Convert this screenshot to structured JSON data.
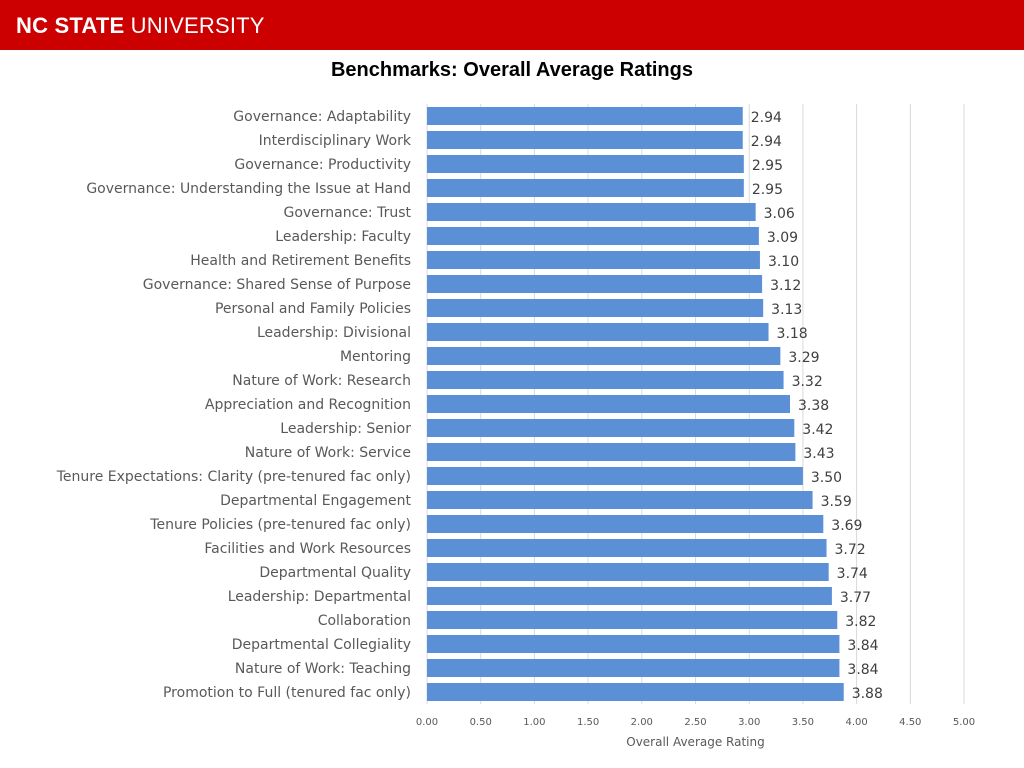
{
  "header": {
    "logo_bold": "NC STATE",
    "logo_regular": " UNIVERSITY",
    "color": "#cc0000"
  },
  "slide_title": "Benchmarks: Overall Average Ratings",
  "chart_data": {
    "type": "bar",
    "orientation": "horizontal",
    "title": "Benchmarks: Overall Average Ratings",
    "xlabel": "Overall Average Rating",
    "ylabel": "",
    "xlim": [
      0,
      5
    ],
    "x_ticks": [
      "0.00",
      "0.50",
      "1.00",
      "1.50",
      "2.00",
      "2.50",
      "3.00",
      "3.50",
      "4.00",
      "4.50",
      "5.00"
    ],
    "grid": "vertical",
    "bar_color": "#5b8fd6",
    "categories": [
      "Governance: Adaptability",
      "Interdisciplinary Work",
      "Governance: Productivity",
      "Governance: Understanding the Issue at Hand",
      "Governance: Trust",
      "Leadership: Faculty",
      "Health and Retirement Benefits",
      "Governance: Shared Sense of Purpose",
      "Personal and Family Policies",
      "Leadership: Divisional",
      "Mentoring",
      "Nature of Work: Research",
      "Appreciation and Recognition",
      "Leadership: Senior",
      "Nature of Work: Service",
      "Tenure Expectations: Clarity (pre-tenured fac only)",
      "Departmental Engagement",
      "Tenure Policies (pre-tenured fac only)",
      "Facilities and Work Resources",
      "Departmental Quality",
      "Leadership: Departmental",
      "Collaboration",
      "Departmental Collegiality",
      "Nature of Work: Teaching",
      "Promotion to Full (tenured fac only)"
    ],
    "values": [
      2.94,
      2.94,
      2.95,
      2.95,
      3.06,
      3.09,
      3.1,
      3.12,
      3.13,
      3.18,
      3.29,
      3.32,
      3.38,
      3.42,
      3.43,
      3.5,
      3.59,
      3.69,
      3.72,
      3.74,
      3.77,
      3.82,
      3.84,
      3.84,
      3.88
    ],
    "value_labels": [
      "2.94",
      "2.94",
      "2.95",
      "2.95",
      "3.06",
      "3.09",
      "3.10",
      "3.12",
      "3.13",
      "3.18",
      "3.29",
      "3.32",
      "3.38",
      "3.42",
      "3.43",
      "3.50",
      "3.59",
      "3.69",
      "3.72",
      "3.74",
      "3.77",
      "3.82",
      "3.84",
      "3.84",
      "3.88"
    ]
  }
}
